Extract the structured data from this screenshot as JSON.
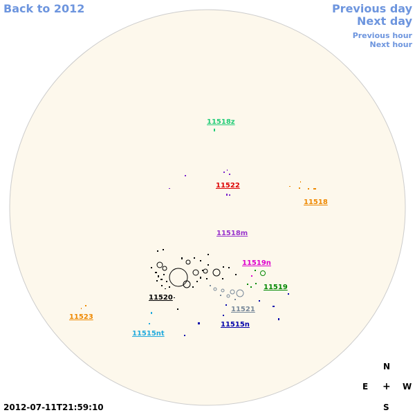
{
  "nav": {
    "back": "Back to 2012",
    "previous_day": "Previous day",
    "next_day": "Next day",
    "previous_hour": "Previous hour",
    "next_hour": "Next hour"
  },
  "timestamp": "2012-07-11T21:59:10",
  "compass": {
    "north": "N",
    "south": "S",
    "east": "E",
    "west": "W",
    "center": "+"
  },
  "colors": {
    "disk_fill": "#fdf8ec",
    "disk_stroke": "#cccccc",
    "link": "#6d95de"
  },
  "regions": [
    {
      "id": "11518z",
      "label": "11518z",
      "color": "#22cc77"
    },
    {
      "id": "11522",
      "label": "11522",
      "color": "#dd0000"
    },
    {
      "id": "11518",
      "label": "11518",
      "color": "#ee8800"
    },
    {
      "id": "11518m",
      "label": "11518m",
      "color": "#9933cc"
    },
    {
      "id": "11519n",
      "label": "11519n",
      "color": "#dd00cc"
    },
    {
      "id": "11519",
      "label": "11519",
      "color": "#008800"
    },
    {
      "id": "11520",
      "label": "11520",
      "color": "#000000"
    },
    {
      "id": "11521",
      "label": "11521",
      "color": "#778899"
    },
    {
      "id": "11523",
      "label": "11523",
      "color": "#ee8800"
    },
    {
      "id": "11515nt",
      "label": "11515nt",
      "color": "#22aadd"
    },
    {
      "id": "11515n",
      "label": "11515n",
      "color": "#0000aa"
    }
  ]
}
